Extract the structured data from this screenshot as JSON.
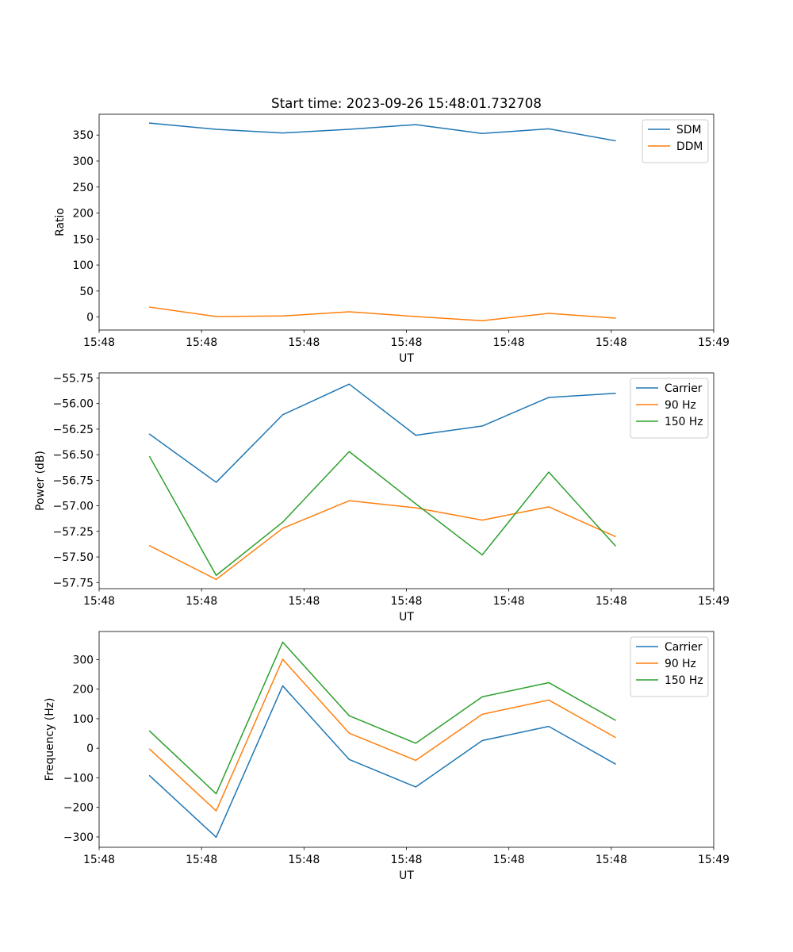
{
  "chart_data": [
    {
      "type": "line",
      "title": "Start time: 2023-09-26 15:48:01.732708",
      "xlabel": "UT",
      "ylabel": "Ratio",
      "x": [
        0,
        1,
        2,
        3,
        4,
        5,
        6,
        7
      ],
      "xlim": [
        -0.76,
        8.48
      ],
      "xticks": [
        -0.76,
        0.78,
        2.32,
        3.86,
        5.4,
        6.94,
        8.48
      ],
      "xtick_labels": [
        "15:48",
        "15:48",
        "15:48",
        "15:48",
        "15:48",
        "15:48",
        "15:49"
      ],
      "ylim": [
        -25,
        390
      ],
      "yticks": [
        0,
        50,
        100,
        150,
        200,
        250,
        300,
        350
      ],
      "ytick_labels": [
        "0",
        "50",
        "100",
        "150",
        "200",
        "250",
        "300",
        "350"
      ],
      "legend_position": "top-right",
      "series": [
        {
          "name": "SDM",
          "color": "#1f77b4",
          "values": [
            373,
            361,
            354,
            361,
            370,
            353,
            362,
            339
          ]
        },
        {
          "name": "DDM",
          "color": "#ff7f0e",
          "values": [
            19,
            1,
            2,
            10,
            1,
            -7,
            7,
            -2
          ]
        }
      ]
    },
    {
      "type": "line",
      "title": "",
      "xlabel": "UT",
      "ylabel": "Power (dB)",
      "x": [
        0,
        1,
        2,
        3,
        4,
        5,
        6,
        7
      ],
      "xlim": [
        -0.76,
        8.48
      ],
      "xticks": [
        -0.76,
        0.78,
        2.32,
        3.86,
        5.4,
        6.94,
        8.48
      ],
      "xtick_labels": [
        "15:48",
        "15:48",
        "15:48",
        "15:48",
        "15:48",
        "15:48",
        "15:49"
      ],
      "ylim": [
        -57.81,
        -55.7
      ],
      "yticks": [
        -57.75,
        -57.5,
        -57.25,
        -57.0,
        -56.75,
        -56.5,
        -56.25,
        -56.0,
        -55.75
      ],
      "ytick_labels": [
        "−57.75",
        "−57.50",
        "−57.25",
        "−57.00",
        "−56.75",
        "−56.50",
        "−56.25",
        "−56.00",
        "−55.75"
      ],
      "legend_position": "top-right",
      "series": [
        {
          "name": "Carrier",
          "color": "#1f77b4",
          "values": [
            -56.3,
            -56.77,
            -56.11,
            -55.81,
            -56.31,
            -56.22,
            -55.94,
            -55.9
          ]
        },
        {
          "name": "90 Hz",
          "color": "#ff7f0e",
          "values": [
            -57.39,
            -57.72,
            -57.22,
            -56.95,
            -57.02,
            -57.14,
            -57.01,
            -57.3
          ]
        },
        {
          "name": "150 Hz",
          "color": "#2ca02c",
          "values": [
            -56.52,
            -57.68,
            -57.16,
            -56.47,
            -56.98,
            -57.48,
            -56.67,
            -57.39
          ]
        }
      ]
    },
    {
      "type": "line",
      "title": "",
      "xlabel": "UT",
      "ylabel": "Frequency (Hz)",
      "x": [
        0,
        1,
        2,
        3,
        4,
        5,
        6,
        7
      ],
      "xlim": [
        -0.76,
        8.48
      ],
      "xticks": [
        -0.76,
        0.78,
        2.32,
        3.86,
        5.4,
        6.94,
        8.48
      ],
      "xtick_labels": [
        "15:48",
        "15:48",
        "15:48",
        "15:48",
        "15:48",
        "15:48",
        "15:49"
      ],
      "ylim": [
        -335,
        395
      ],
      "yticks": [
        -300,
        -200,
        -100,
        0,
        100,
        200,
        300
      ],
      "ytick_labels": [
        "−300",
        "−200",
        "−100",
        "0",
        "100",
        "200",
        "300"
      ],
      "legend_position": "top-right",
      "series": [
        {
          "name": "Carrier",
          "color": "#1f77b4",
          "values": [
            -93,
            -301,
            211,
            -38,
            -131,
            26,
            74,
            -53
          ]
        },
        {
          "name": "90 Hz",
          "color": "#ff7f0e",
          "values": [
            -3,
            -212,
            301,
            51,
            -41,
            115,
            163,
            37
          ]
        },
        {
          "name": "150 Hz",
          "color": "#2ca02c",
          "values": [
            58,
            -154,
            359,
            110,
            17,
            174,
            222,
            95
          ]
        }
      ]
    }
  ]
}
